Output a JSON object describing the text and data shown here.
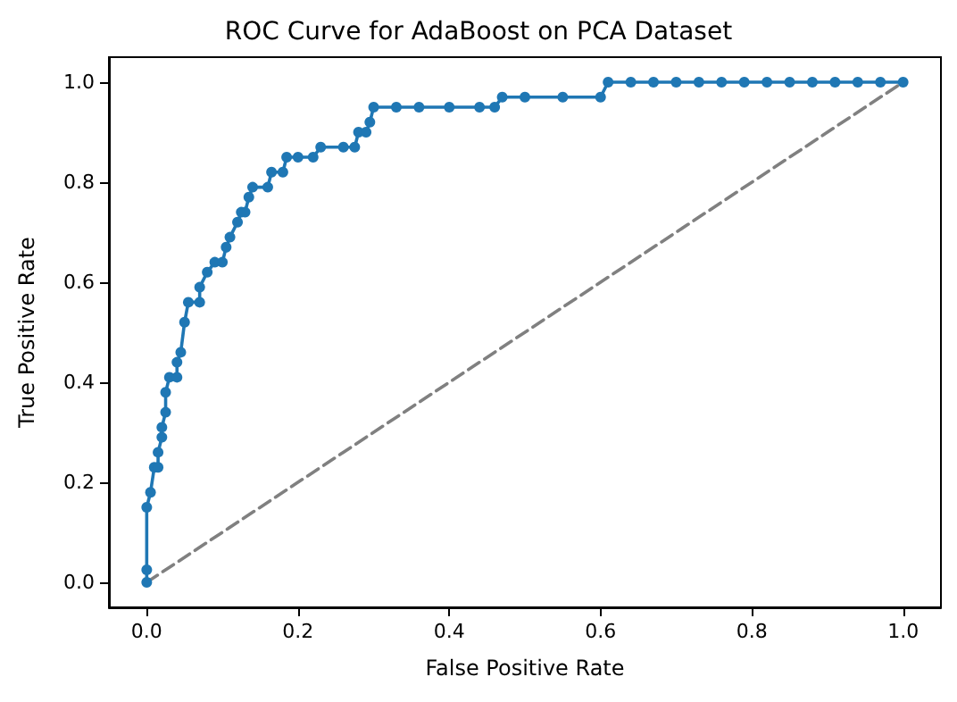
{
  "chart_data": {
    "type": "line",
    "title": "ROC Curve for AdaBoost on PCA Dataset",
    "xlabel": "False Positive Rate",
    "ylabel": "True Positive Rate",
    "xlim": [
      -0.05,
      1.05
    ],
    "ylim": [
      -0.05,
      1.05
    ],
    "xticks": [
      {
        "value": 0,
        "label": "0.0"
      },
      {
        "value": 0.2,
        "label": "0.2"
      },
      {
        "value": 0.4,
        "label": "0.4"
      },
      {
        "value": 0.6,
        "label": "0.6"
      },
      {
        "value": 0.8,
        "label": "0.8"
      },
      {
        "value": 1,
        "label": "1.0"
      }
    ],
    "yticks": [
      {
        "value": 0,
        "label": "0.0"
      },
      {
        "value": 0.2,
        "label": "0.2"
      },
      {
        "value": 0.4,
        "label": "0.4"
      },
      {
        "value": 0.6,
        "label": "0.6"
      },
      {
        "value": 0.8,
        "label": "0.8"
      },
      {
        "value": 1,
        "label": "1.0"
      }
    ],
    "grid": false,
    "series": [
      {
        "color": "#1f77b4",
        "marker": "circle",
        "line_style": "solid",
        "x": [
          0,
          0,
          0,
          0.005,
          0.01,
          0.015,
          0.015,
          0.02,
          0.02,
          0.025,
          0.025,
          0.03,
          0.04,
          0.04,
          0.045,
          0.05,
          0.055,
          0.07,
          0.07,
          0.08,
          0.09,
          0.1,
          0.105,
          0.11,
          0.12,
          0.125,
          0.13,
          0.135,
          0.14,
          0.16,
          0.165,
          0.18,
          0.185,
          0.2,
          0.22,
          0.23,
          0.26,
          0.275,
          0.28,
          0.29,
          0.295,
          0.3,
          0.33,
          0.36,
          0.4,
          0.44,
          0.46,
          0.47,
          0.5,
          0.55,
          0.6,
          0.61,
          0.64,
          0.67,
          0.7,
          0.73,
          0.76,
          0.79,
          0.82,
          0.85,
          0.88,
          0.91,
          0.94,
          0.97,
          1
        ],
        "values": [
          0,
          0.025,
          0.15,
          0.18,
          0.23,
          0.23,
          0.26,
          0.29,
          0.31,
          0.34,
          0.38,
          0.41,
          0.41,
          0.44,
          0.46,
          0.52,
          0.56,
          0.56,
          0.59,
          0.62,
          0.64,
          0.64,
          0.67,
          0.69,
          0.72,
          0.74,
          0.74,
          0.77,
          0.79,
          0.79,
          0.82,
          0.82,
          0.85,
          0.85,
          0.85,
          0.87,
          0.87,
          0.87,
          0.9,
          0.9,
          0.92,
          0.95,
          0.95,
          0.95,
          0.95,
          0.95,
          0.95,
          0.97,
          0.97,
          0.97,
          0.97,
          1,
          1,
          1,
          1,
          1,
          1,
          1,
          1,
          1,
          1,
          1,
          1,
          1,
          1
        ]
      },
      {
        "color": "#808080",
        "marker": "none",
        "line_style": "dashed",
        "x": [
          0,
          1
        ],
        "values": [
          0,
          1
        ]
      }
    ]
  }
}
